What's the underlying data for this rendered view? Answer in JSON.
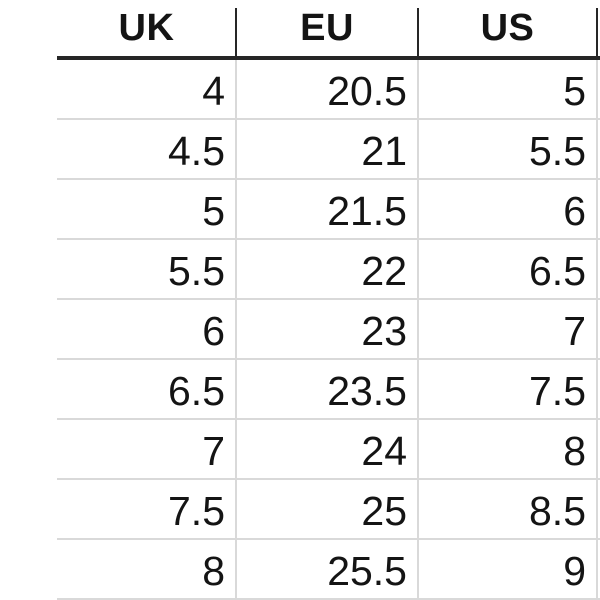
{
  "table": {
    "headers": [
      "UK",
      "EU",
      "US"
    ],
    "rows": [
      [
        "4",
        "20.5",
        "5"
      ],
      [
        "4.5",
        "21",
        "5.5"
      ],
      [
        "5",
        "21.5",
        "6"
      ],
      [
        "5.5",
        "22",
        "6.5"
      ],
      [
        "6",
        "23",
        "7"
      ],
      [
        "6.5",
        "23.5",
        "7.5"
      ],
      [
        "7",
        "24",
        "8"
      ],
      [
        "7.5",
        "25",
        "8.5"
      ],
      [
        "8",
        "25.5",
        "9"
      ]
    ]
  },
  "colors": {
    "background": "#ffffff",
    "grid_line": "#d9d9d9",
    "header_line": "#262626",
    "text": "#141414"
  }
}
